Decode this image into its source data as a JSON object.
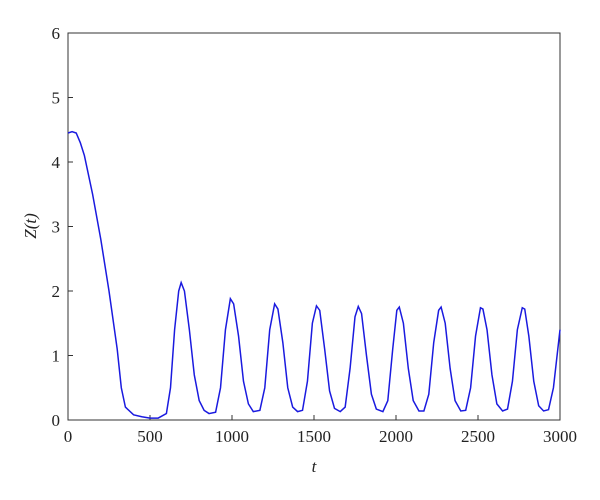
{
  "chart_data": {
    "type": "line",
    "x_label": "t",
    "y_label": "Z(t)",
    "x": [
      0,
      25,
      50,
      75,
      100,
      150,
      200,
      250,
      300,
      325,
      350,
      400,
      450,
      500,
      550,
      600,
      625,
      650,
      675,
      690,
      710,
      740,
      770,
      800,
      830,
      860,
      900,
      930,
      960,
      990,
      1010,
      1040,
      1070,
      1100,
      1130,
      1170,
      1200,
      1230,
      1260,
      1280,
      1310,
      1340,
      1370,
      1400,
      1430,
      1460,
      1490,
      1515,
      1535,
      1565,
      1595,
      1625,
      1660,
      1690,
      1720,
      1750,
      1770,
      1790,
      1820,
      1850,
      1880,
      1920,
      1950,
      1980,
      2005,
      2020,
      2045,
      2075,
      2105,
      2140,
      2170,
      2200,
      2230,
      2260,
      2275,
      2300,
      2330,
      2360,
      2395,
      2425,
      2455,
      2485,
      2515,
      2530,
      2555,
      2585,
      2615,
      2650,
      2680,
      2710,
      2740,
      2770,
      2785,
      2810,
      2840,
      2870,
      2900,
      2930,
      2960,
      3000
    ],
    "series": [
      {
        "name": "Z(t)",
        "color": "#1a1adf",
        "values": [
          4.45,
          4.47,
          4.45,
          4.3,
          4.1,
          3.5,
          2.8,
          2.0,
          1.1,
          0.5,
          0.2,
          0.08,
          0.05,
          0.03,
          0.03,
          0.1,
          0.5,
          1.4,
          2.0,
          2.13,
          2.0,
          1.4,
          0.7,
          0.3,
          0.15,
          0.1,
          0.12,
          0.5,
          1.4,
          1.88,
          1.8,
          1.3,
          0.6,
          0.25,
          0.13,
          0.15,
          0.5,
          1.4,
          1.8,
          1.72,
          1.2,
          0.5,
          0.2,
          0.13,
          0.15,
          0.6,
          1.5,
          1.77,
          1.7,
          1.1,
          0.45,
          0.18,
          0.13,
          0.2,
          0.8,
          1.6,
          1.76,
          1.65,
          1.0,
          0.4,
          0.17,
          0.13,
          0.3,
          1.1,
          1.7,
          1.75,
          1.5,
          0.8,
          0.3,
          0.14,
          0.14,
          0.4,
          1.2,
          1.7,
          1.75,
          1.5,
          0.8,
          0.3,
          0.14,
          0.15,
          0.5,
          1.3,
          1.74,
          1.72,
          1.4,
          0.7,
          0.25,
          0.14,
          0.17,
          0.6,
          1.4,
          1.74,
          1.72,
          1.3,
          0.6,
          0.22,
          0.14,
          0.16,
          0.5,
          1.4
        ]
      }
    ],
    "xlim": [
      0,
      3000
    ],
    "xticks": [
      0,
      500,
      1000,
      1500,
      2000,
      2500,
      3000
    ],
    "ylim": [
      0,
      6
    ],
    "yticks": [
      0,
      1,
      2,
      3,
      4,
      5,
      6
    ]
  }
}
